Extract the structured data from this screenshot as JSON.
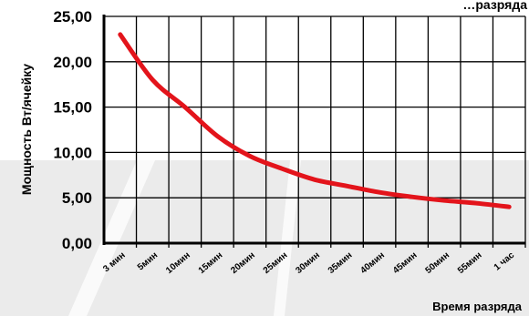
{
  "chart_data": {
    "type": "line",
    "title": "…разряда",
    "xlabel": "Время разряда",
    "ylabel": "Мощность Вт/ячейку",
    "ylim": [
      0,
      25
    ],
    "y_ticks": [
      "0,00",
      "5,00",
      "10,00",
      "15,00",
      "20,00",
      "25,00"
    ],
    "categories": [
      "3 мин",
      "5мин",
      "10мин",
      "15мин",
      "20мин",
      "25мин",
      "30мин",
      "35мин",
      "40мин",
      "45мин",
      "50мин",
      "55мин",
      "1 час"
    ],
    "grid": true,
    "series": [
      {
        "color": "#e3141b",
        "points": [
          [
            "3 мин",
            23.0
          ],
          [
            "5мин",
            18.0
          ],
          [
            "10мин",
            15.0
          ],
          [
            "15мин",
            11.8
          ],
          [
            "20мин",
            9.6
          ],
          [
            "25мин",
            8.2
          ],
          [
            "30мин",
            7.0
          ],
          [
            "35мин",
            6.3
          ],
          [
            "40мин",
            5.6
          ],
          [
            "45мин",
            5.1
          ],
          [
            "50мин",
            4.7
          ],
          [
            "55мин",
            4.4
          ],
          [
            "1 час",
            4.0
          ]
        ]
      }
    ]
  }
}
